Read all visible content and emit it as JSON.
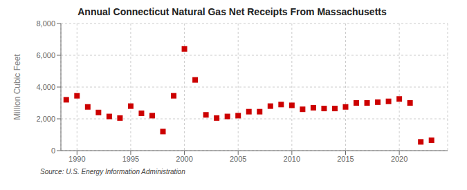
{
  "chart_data": {
    "type": "scatter",
    "title": "Annual Connecticut Natural Gas Net Receipts From Massachusetts",
    "y_label": "Million Cubic Feet",
    "source": "Source: U.S. Energy Information Administration",
    "color": "#cc0000",
    "marker": "square",
    "grid": true,
    "x": [
      1989,
      1990,
      1991,
      1992,
      1993,
      1994,
      1995,
      1996,
      1997,
      1998,
      1999,
      2000,
      2001,
      2002,
      2003,
      2004,
      2005,
      2006,
      2007,
      2008,
      2009,
      2010,
      2011,
      2012,
      2013,
      2014,
      2015,
      2016,
      2017,
      2018,
      2019,
      2020,
      2021,
      2022,
      2023
    ],
    "values": [
      3200,
      3450,
      2750,
      2400,
      2150,
      2050,
      2800,
      2350,
      2200,
      1200,
      3450,
      6400,
      4450,
      2250,
      2050,
      2150,
      2200,
      2450,
      2450,
      2800,
      2900,
      2850,
      2600,
      2700,
      2650,
      2650,
      2750,
      3000,
      3000,
      3050,
      3100,
      3250,
      3000,
      550,
      650
    ],
    "xlim": [
      1988.5,
      2024.5
    ],
    "xticks": [
      1990,
      1995,
      2000,
      2005,
      2010,
      2015,
      2020
    ],
    "ylim": [
      0,
      8000
    ],
    "yticks": [
      0,
      {
        "value": 2000,
        "label": "2,000"
      },
      {
        "value": 4000,
        "label": "4,000"
      },
      {
        "value": 6000,
        "label": "6,000"
      },
      {
        "value": 8000,
        "label": "8,000"
      }
    ]
  }
}
